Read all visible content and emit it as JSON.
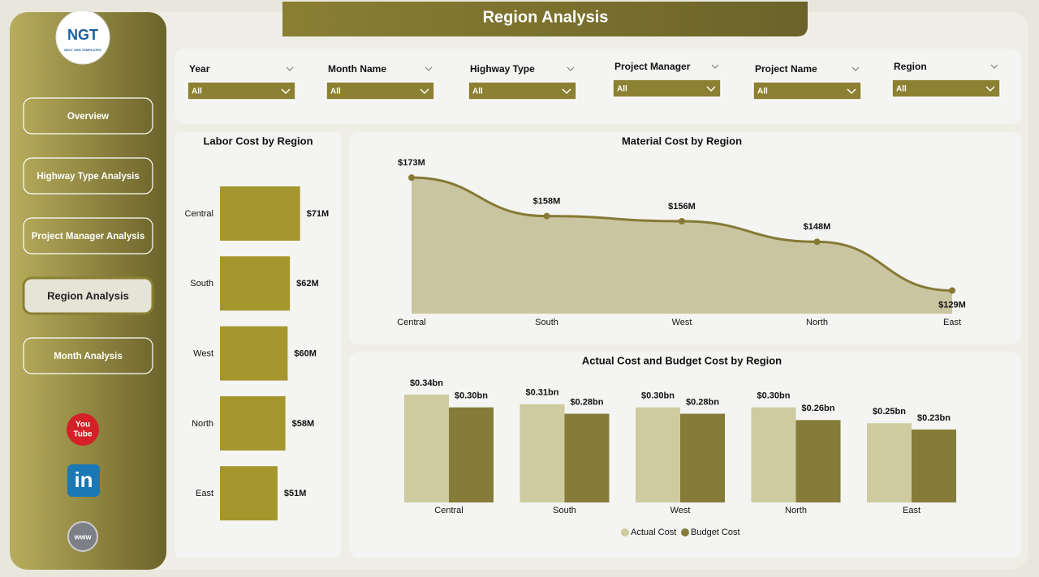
{
  "header": {
    "title": "Region Analysis"
  },
  "logo": {
    "text": "NGT",
    "subtitle": "NEXT GEN TEMPLATES"
  },
  "nav": {
    "items": [
      "Overview",
      "Highway Type Analysis",
      "Project Manager Analysis",
      "Region Analysis",
      "Month Analysis"
    ],
    "active": 3
  },
  "icons": {
    "youtube": [
      "You",
      "Tube"
    ],
    "linkedin": "in",
    "web": "www"
  },
  "filters": [
    {
      "label": "Year",
      "value": "All"
    },
    {
      "label": "Month Name",
      "value": "All"
    },
    {
      "label": "Highway Type",
      "value": "All"
    },
    {
      "label": "Project Manager",
      "value": "All"
    },
    {
      "label": "Project Name",
      "value": "All"
    },
    {
      "label": "Region",
      "value": "All"
    }
  ],
  "chart_data": [
    {
      "type": "bar",
      "orientation": "horizontal",
      "title": "Labor Cost by Region",
      "categories": [
        "Central",
        "South",
        "West",
        "North",
        "East"
      ],
      "values": [
        71,
        62,
        60,
        58,
        51
      ],
      "value_labels": [
        "$71M",
        "$62M",
        "$60M",
        "$58M",
        "$51M"
      ],
      "color": "#a4962c"
    },
    {
      "type": "area",
      "title": "Material Cost by Region",
      "categories": [
        "Central",
        "South",
        "West",
        "North",
        "East"
      ],
      "values": [
        173,
        158,
        156,
        148,
        129
      ],
      "value_labels": [
        "$173M",
        "$158M",
        "$156M",
        "$148M",
        "$129M"
      ],
      "ylim": [
        120,
        180
      ],
      "color": "#857a35",
      "fill": "#c9c5a0"
    },
    {
      "type": "bar",
      "title": "Actual Cost and Budget Cost by Region",
      "categories": [
        "Central",
        "South",
        "West",
        "North",
        "East"
      ],
      "series": [
        {
          "name": "Actual Cost",
          "color": "#cfcba0",
          "values": [
            0.34,
            0.31,
            0.3,
            0.3,
            0.25
          ],
          "value_labels": [
            "$0.34bn",
            "$0.31bn",
            "$0.30bn",
            "$0.30bn",
            "$0.25bn"
          ]
        },
        {
          "name": "Budget Cost",
          "color": "#847c38",
          "values": [
            0.3,
            0.28,
            0.28,
            0.26,
            0.23
          ],
          "value_labels": [
            "$0.30bn",
            "$0.28bn",
            "$0.28bn",
            "$0.26bn",
            "$0.23bn"
          ]
        }
      ]
    }
  ]
}
